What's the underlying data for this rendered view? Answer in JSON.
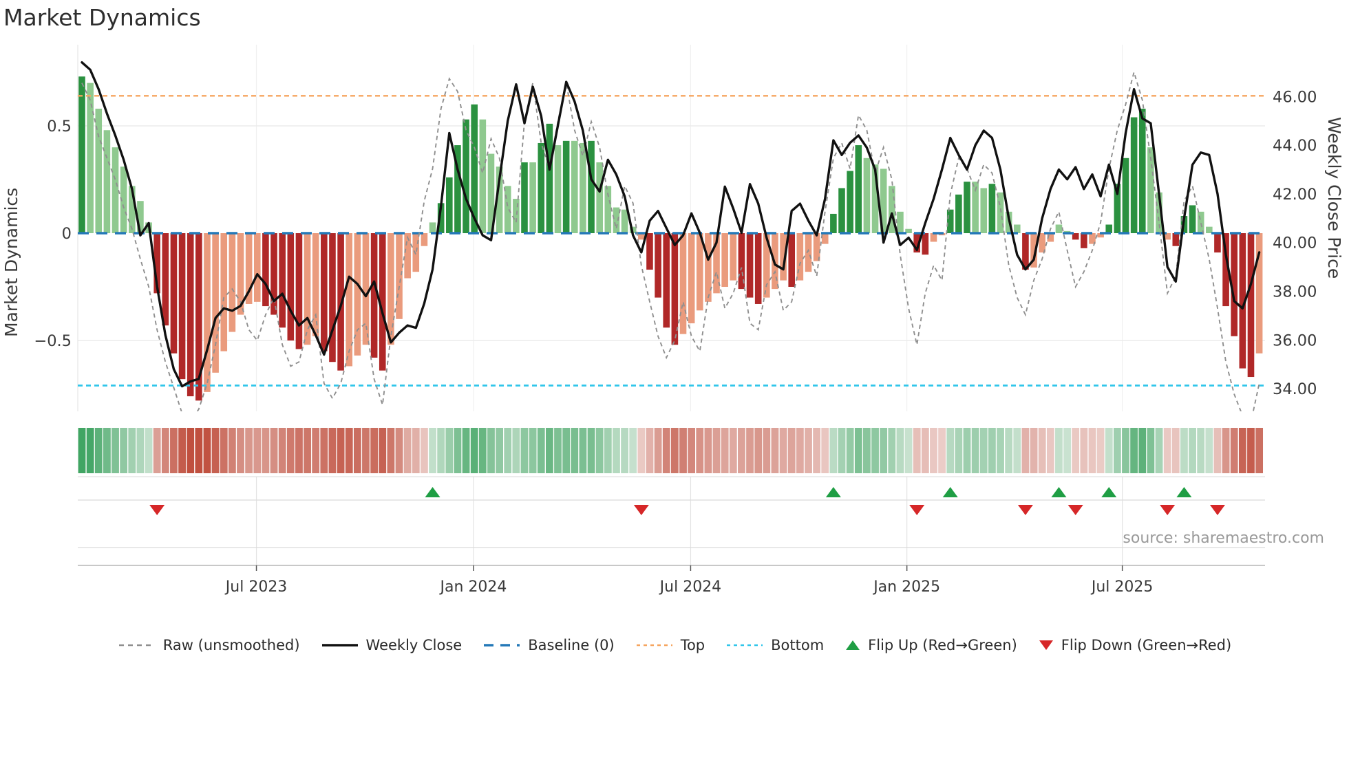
{
  "title": "Market Dynamics",
  "left_axis": {
    "label": "Market Dynamics",
    "ticks": [
      {
        "label": "0.5",
        "value": 0.5
      },
      {
        "label": "0",
        "value": 0.0
      },
      {
        "label": "−0.5",
        "value": -0.5
      }
    ]
  },
  "right_axis": {
    "label": "Weekly Close Price",
    "ticks": [
      {
        "label": "46.00",
        "value": 46.0
      },
      {
        "label": "44.00",
        "value": 44.0
      },
      {
        "label": "42.00",
        "value": 42.0
      },
      {
        "label": "40.00",
        "value": 40.0
      },
      {
        "label": "38.00",
        "value": 38.0
      },
      {
        "label": "36.00",
        "value": 36.0
      },
      {
        "label": "34.00",
        "value": 34.0
      }
    ]
  },
  "source": "source: sharemaestro.com",
  "legend": {
    "items": [
      {
        "label": "Raw (unsmoothed)",
        "swatch": "dashed-line",
        "color": "#8f8f8f"
      },
      {
        "label": "Weekly Close",
        "swatch": "solid-line",
        "color": "#111111"
      },
      {
        "label": "Baseline (0)",
        "swatch": "dashed-line-bold",
        "color": "#2579b8"
      },
      {
        "label": "Top",
        "swatch": "dotted-line",
        "color": "#f6a55f"
      },
      {
        "label": "Bottom",
        "swatch": "dotted-line",
        "color": "#30c6ea"
      },
      {
        "label": "Flip Up (Red→Green)",
        "swatch": "triangle-up",
        "color": "#1f9e44"
      },
      {
        "label": "Flip Down (Green→Red)",
        "swatch": "triangle-down",
        "color": "#d62728"
      }
    ]
  },
  "chart_data": {
    "type": "bar+line combo with heatmap strip and flip markers",
    "title": "Market Dynamics",
    "ylabel_left": "Market Dynamics",
    "ylabel_right": "Weekly Close Price",
    "weeks": 142,
    "x_ticks": [
      {
        "label": "Jul 2023",
        "week": 20.9
      },
      {
        "label": "Jan 2024",
        "week": 46.9
      },
      {
        "label": "Jul 2024",
        "week": 72.9
      },
      {
        "label": "Jan 2025",
        "week": 98.8
      },
      {
        "label": "Jul 2025",
        "week": 124.6
      }
    ],
    "ylim_left": [
      -0.85,
      0.88
    ],
    "ylim_right": [
      33.0,
      48.2
    ],
    "baseline": 0.0,
    "top_line": 0.64,
    "bottom_line": -0.71,
    "bars": [
      0.73,
      0.7,
      0.58,
      0.48,
      0.4,
      0.31,
      0.22,
      0.15,
      0.05,
      -0.28,
      -0.43,
      -0.56,
      -0.68,
      -0.76,
      -0.78,
      -0.74,
      -0.65,
      -0.55,
      -0.46,
      -0.38,
      -0.33,
      -0.32,
      -0.34,
      -0.38,
      -0.44,
      -0.5,
      -0.54,
      -0.52,
      -0.48,
      -0.55,
      -0.6,
      -0.64,
      -0.62,
      -0.57,
      -0.52,
      -0.58,
      -0.64,
      -0.52,
      -0.4,
      -0.21,
      -0.18,
      -0.06,
      0.05,
      0.14,
      0.26,
      0.41,
      0.53,
      0.6,
      0.53,
      0.37,
      0.31,
      0.22,
      0.16,
      0.33,
      0.33,
      0.42,
      0.51,
      0.41,
      0.43,
      0.43,
      0.42,
      0.43,
      0.33,
      0.22,
      0.12,
      0.11,
      0.03,
      -0.03,
      -0.17,
      -0.3,
      -0.44,
      -0.52,
      -0.47,
      -0.42,
      -0.36,
      -0.32,
      -0.28,
      -0.25,
      -0.22,
      -0.26,
      -0.3,
      -0.33,
      -0.3,
      -0.26,
      -0.22,
      -0.25,
      -0.22,
      -0.18,
      -0.13,
      -0.05,
      0.09,
      0.21,
      0.29,
      0.41,
      0.35,
      0.32,
      0.3,
      0.22,
      0.1,
      0.02,
      -0.09,
      -0.1,
      -0.04,
      -0.01,
      0.11,
      0.18,
      0.24,
      0.24,
      0.21,
      0.23,
      0.19,
      0.1,
      0.04,
      -0.17,
      -0.16,
      -0.09,
      -0.04,
      0.04,
      0.01,
      -0.03,
      -0.07,
      -0.05,
      -0.02,
      0.04,
      0.23,
      0.35,
      0.54,
      0.58,
      0.4,
      0.19,
      -0.03,
      -0.06,
      0.08,
      0.13,
      0.1,
      0.03,
      -0.09,
      -0.34,
      -0.48,
      -0.63,
      -0.67,
      -0.56
    ],
    "raw": [
      0.7,
      0.62,
      0.45,
      0.35,
      0.25,
      0.12,
      0.02,
      -0.12,
      -0.25,
      -0.45,
      -0.6,
      -0.72,
      -0.84,
      -0.88,
      -0.82,
      -0.7,
      -0.52,
      -0.3,
      -0.26,
      -0.32,
      -0.45,
      -0.5,
      -0.38,
      -0.3,
      -0.52,
      -0.62,
      -0.6,
      -0.45,
      -0.38,
      -0.7,
      -0.77,
      -0.7,
      -0.55,
      -0.45,
      -0.42,
      -0.68,
      -0.8,
      -0.48,
      -0.25,
      -0.02,
      -0.1,
      0.15,
      0.3,
      0.58,
      0.72,
      0.66,
      0.48,
      0.4,
      0.28,
      0.44,
      0.35,
      0.12,
      0.05,
      0.52,
      0.7,
      0.42,
      0.3,
      0.52,
      0.7,
      0.48,
      0.36,
      0.52,
      0.4,
      0.18,
      0.02,
      0.22,
      0.14,
      -0.15,
      -0.32,
      -0.48,
      -0.58,
      -0.5,
      -0.32,
      -0.48,
      -0.55,
      -0.3,
      -0.18,
      -0.35,
      -0.28,
      -0.16,
      -0.42,
      -0.45,
      -0.24,
      -0.18,
      -0.36,
      -0.32,
      -0.14,
      -0.08,
      -0.2,
      0.1,
      0.35,
      0.42,
      0.3,
      0.55,
      0.48,
      0.28,
      0.4,
      0.25,
      -0.1,
      -0.35,
      -0.52,
      -0.28,
      -0.15,
      -0.22,
      0.18,
      0.35,
      0.3,
      0.2,
      0.32,
      0.28,
      0.12,
      -0.15,
      -0.3,
      -0.38,
      -0.22,
      -0.12,
      0.02,
      0.1,
      -0.08,
      -0.25,
      -0.18,
      -0.08,
      0.05,
      0.3,
      0.48,
      0.6,
      0.75,
      0.62,
      0.35,
      0.05,
      -0.28,
      -0.2,
      0.15,
      0.22,
      0.05,
      -0.12,
      -0.35,
      -0.6,
      -0.75,
      -0.85,
      -0.88,
      -0.7
    ],
    "price": [
      47.4,
      47.1,
      46.3,
      45.3,
      44.4,
      43.4,
      42.2,
      40.3,
      40.8,
      38.2,
      36.2,
      34.8,
      34.1,
      34.3,
      34.4,
      35.6,
      36.9,
      37.3,
      37.2,
      37.4,
      38.0,
      38.7,
      38.3,
      37.6,
      37.9,
      37.2,
      36.6,
      36.9,
      36.2,
      35.4,
      36.4,
      37.4,
      38.6,
      38.3,
      37.8,
      38.4,
      37.1,
      35.9,
      36.3,
      36.6,
      36.5,
      37.5,
      38.9,
      41.5,
      44.5,
      43.0,
      41.8,
      41.0,
      40.3,
      40.1,
      42.6,
      45.0,
      46.5,
      44.9,
      46.4,
      45.2,
      43.0,
      44.8,
      46.6,
      45.8,
      44.6,
      42.6,
      42.1,
      43.4,
      42.8,
      41.9,
      40.3,
      39.6,
      40.9,
      41.3,
      40.6,
      39.9,
      40.3,
      41.2,
      40.4,
      39.3,
      40.0,
      42.3,
      41.4,
      40.4,
      42.4,
      41.6,
      40.2,
      39.1,
      38.9,
      41.3,
      41.6,
      40.9,
      40.3,
      41.8,
      44.2,
      43.6,
      44.1,
      44.4,
      43.9,
      43.0,
      40.0,
      41.2,
      39.9,
      40.2,
      39.7,
      40.8,
      41.8,
      43.0,
      44.3,
      43.6,
      43.0,
      44.0,
      44.6,
      44.3,
      43.0,
      41.0,
      39.5,
      38.9,
      39.3,
      41.0,
      42.2,
      43.0,
      42.6,
      43.1,
      42.2,
      42.8,
      41.9,
      43.2,
      42.0,
      44.5,
      46.3,
      45.1,
      44.9,
      42.0,
      39.0,
      38.4,
      41.0,
      43.2,
      43.7,
      43.6,
      42.0,
      39.5,
      37.6,
      37.3,
      38.3,
      39.6
    ],
    "flips_up_weeks": [
      42,
      90,
      104,
      117,
      123,
      132
    ],
    "flips_down_weeks": [
      9,
      67,
      100,
      113,
      119,
      130,
      136
    ],
    "legend_position": "bottom center",
    "grid": true,
    "colors": {
      "bar_green_strong": "#2b9140",
      "bar_green_light": "#8fc98f",
      "bar_red_strong": "#b02828",
      "bar_red_light": "#ea9b7d",
      "price_line": "#111111",
      "raw_line": "#8f8f8f",
      "baseline": "#2579b8",
      "top_line": "#f6a55f",
      "bottom_line": "#30c6ea",
      "heat_green": "#3da360",
      "heat_red": "#c0503f",
      "flip_up": "#1f9e44",
      "flip_down": "#d62728"
    }
  }
}
